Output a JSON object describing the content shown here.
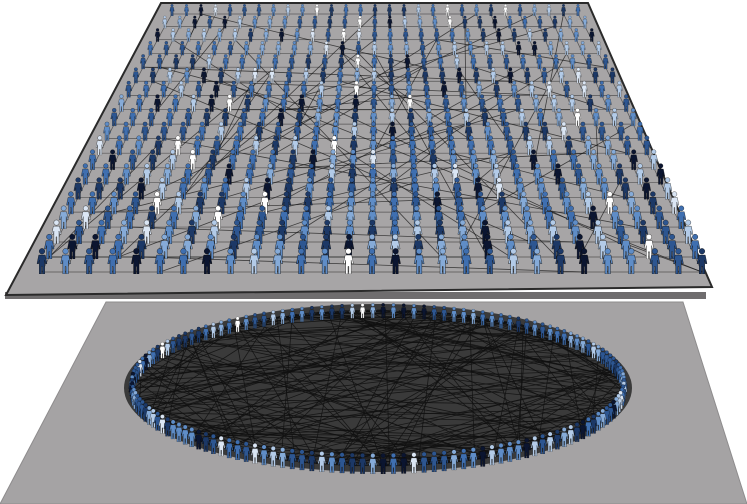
{
  "figure": {
    "layers": [
      {
        "id": "lattice",
        "arrangement": "grid",
        "people_per_row": 29,
        "rows": 19,
        "plane_color": "#a5a3a4"
      },
      {
        "id": "ring",
        "arrangement": "circle",
        "people_count": 150,
        "plane_color": "#a5a3a4"
      }
    ],
    "link_color": "#111111",
    "person_palette": [
      "#0b1530",
      "#1c3866",
      "#2d5691",
      "#3f6fb0",
      "#5f8dc7",
      "#86abd8",
      "#b3cbe8",
      "#dbe6f4",
      "#ffffff"
    ]
  }
}
